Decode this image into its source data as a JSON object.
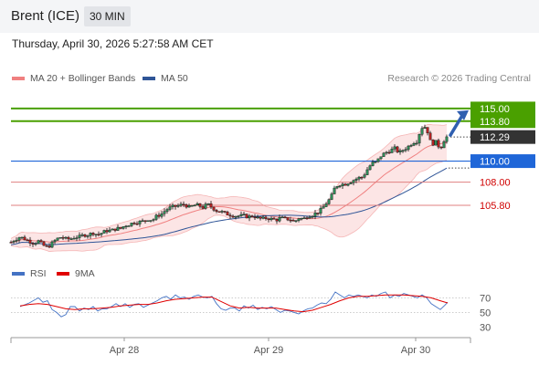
{
  "header": {
    "instrument": "Brent (ICE)",
    "interval": "30 MIN"
  },
  "datetime": "Thursday, April 30, 2026 5:27:58 AM CET",
  "credit": "Research © 2026 Trading Central",
  "colors": {
    "ma20": "#f08080",
    "ma50": "#2f5597",
    "rsi": "#4472c4",
    "rsi_ma": "#e00000",
    "resistance": "#4aa000",
    "support": "#1f66d8",
    "current": "#333333",
    "level": "#e08080"
  },
  "chart_data": [
    {
      "type": "candlestick",
      "legend": [
        {
          "name": "MA 20 + Bollinger Bands",
          "color": "#f08080"
        },
        {
          "name": "MA 50",
          "color": "#2f5597"
        }
      ],
      "ylim": [
        100.6,
        116.9
      ],
      "x_ticks": [
        "Apr 28",
        "Apr 29",
        "Apr 30"
      ],
      "levels": [
        {
          "value": 115.0,
          "label": "115.00",
          "kind": "resistance"
        },
        {
          "value": 113.8,
          "label": "113.80",
          "kind": "resistance"
        },
        {
          "value": 112.29,
          "label": "112.29",
          "kind": "current"
        },
        {
          "value": 110.0,
          "label": "110.00",
          "kind": "support"
        },
        {
          "value": 108.0,
          "label": "108.00",
          "kind": "level"
        },
        {
          "value": 105.8,
          "label": "105.80",
          "kind": "level"
        }
      ],
      "close_anchors": [
        [
          0,
          102.3
        ],
        [
          5,
          102.6
        ],
        [
          10,
          102.8
        ],
        [
          15,
          102.6
        ],
        [
          20,
          102.4
        ],
        [
          25,
          102.2
        ],
        [
          30,
          102.4
        ],
        [
          35,
          102.0
        ],
        [
          40,
          101.8
        ],
        [
          45,
          102.2
        ],
        [
          50,
          102.6
        ],
        [
          55,
          102.8
        ],
        [
          60,
          102.6
        ],
        [
          65,
          102.6
        ],
        [
          70,
          102.8
        ],
        [
          75,
          102.8
        ],
        [
          80,
          103.0
        ],
        [
          85,
          103.0
        ],
        [
          90,
          103.2
        ],
        [
          95,
          103.0
        ],
        [
          100,
          103.2
        ],
        [
          105,
          103.4
        ],
        [
          110,
          103.4
        ],
        [
          115,
          103.6
        ],
        [
          120,
          103.6
        ],
        [
          125,
          103.9
        ],
        [
          130,
          104.0
        ],
        [
          135,
          104.2
        ],
        [
          140,
          104.2
        ],
        [
          145,
          104.3
        ],
        [
          150,
          104.5
        ],
        [
          155,
          104.4
        ],
        [
          160,
          104.8
        ],
        [
          165,
          105.0
        ],
        [
          170,
          105.4
        ],
        [
          175,
          105.6
        ],
        [
          180,
          105.7
        ],
        [
          185,
          105.8
        ],
        [
          190,
          105.9
        ],
        [
          195,
          105.6
        ],
        [
          200,
          105.8
        ],
        [
          205,
          105.8
        ],
        [
          210,
          105.6
        ],
        [
          215,
          105.9
        ],
        [
          220,
          105.6
        ],
        [
          225,
          105.3
        ],
        [
          230,
          105.2
        ],
        [
          235,
          105.0
        ],
        [
          240,
          104.9
        ],
        [
          245,
          104.8
        ],
        [
          250,
          104.8
        ],
        [
          255,
          104.8
        ],
        [
          260,
          104.7
        ],
        [
          265,
          104.8
        ],
        [
          270,
          104.6
        ],
        [
          275,
          104.5
        ],
        [
          280,
          104.6
        ],
        [
          285,
          104.5
        ],
        [
          290,
          104.4
        ],
        [
          295,
          104.6
        ],
        [
          300,
          104.5
        ],
        [
          305,
          104.5
        ],
        [
          310,
          104.2
        ],
        [
          315,
          104.6
        ],
        [
          320,
          104.5
        ],
        [
          325,
          104.8
        ],
        [
          330,
          104.9
        ],
        [
          335,
          105.1
        ],
        [
          340,
          105.4
        ],
        [
          345,
          106.0
        ],
        [
          350,
          106.5
        ],
        [
          355,
          107.6
        ],
        [
          360,
          107.8
        ],
        [
          365,
          107.8
        ],
        [
          370,
          108.0
        ],
        [
          375,
          108.2
        ],
        [
          380,
          108.4
        ],
        [
          385,
          108.5
        ],
        [
          390,
          109.2
        ],
        [
          395,
          109.8
        ],
        [
          400,
          109.9
        ],
        [
          405,
          110.5
        ],
        [
          410,
          110.8
        ],
        [
          415,
          111.0
        ],
        [
          420,
          111.2
        ],
        [
          425,
          110.8
        ],
        [
          430,
          111.1
        ],
        [
          435,
          111.4
        ],
        [
          440,
          111.8
        ],
        [
          445,
          111.9
        ],
        [
          448,
          113.0
        ],
        [
          452,
          113.4
        ],
        [
          456,
          112.8
        ],
        [
          460,
          111.6
        ],
        [
          465,
          111.8
        ],
        [
          470,
          111.2
        ],
        [
          474,
          112.0
        ],
        [
          477,
          112.29
        ]
      ]
    },
    {
      "type": "line",
      "legend": [
        {
          "name": "RSI",
          "color": "#4472c4"
        },
        {
          "name": "9MA",
          "color": "#e00000"
        }
      ],
      "ylim": [
        18,
        88
      ],
      "y_ticks": [
        "70",
        "50",
        "30"
      ],
      "rsi": [
        [
          10,
          58
        ],
        [
          20,
          63
        ],
        [
          30,
          70
        ],
        [
          35,
          64
        ],
        [
          40,
          66
        ],
        [
          45,
          54
        ],
        [
          50,
          50
        ],
        [
          55,
          44
        ],
        [
          60,
          47
        ],
        [
          65,
          58
        ],
        [
          70,
          58
        ],
        [
          75,
          52
        ],
        [
          80,
          56
        ],
        [
          85,
          54
        ],
        [
          90,
          58
        ],
        [
          95,
          52
        ],
        [
          100,
          55
        ],
        [
          105,
          55
        ],
        [
          110,
          58
        ],
        [
          115,
          62
        ],
        [
          120,
          58
        ],
        [
          125,
          62
        ],
        [
          130,
          57
        ],
        [
          135,
          61
        ],
        [
          140,
          62
        ],
        [
          145,
          57
        ],
        [
          150,
          60
        ],
        [
          155,
          63
        ],
        [
          160,
          66
        ],
        [
          165,
          70
        ],
        [
          170,
          72
        ],
        [
          175,
          68
        ],
        [
          180,
          74
        ],
        [
          185,
          70
        ],
        [
          190,
          71
        ],
        [
          195,
          68
        ],
        [
          200,
          72
        ],
        [
          205,
          74
        ],
        [
          210,
          71
        ],
        [
          215,
          70
        ],
        [
          220,
          72
        ],
        [
          225,
          62
        ],
        [
          230,
          55
        ],
        [
          235,
          53
        ],
        [
          240,
          56
        ],
        [
          245,
          56
        ],
        [
          250,
          52
        ],
        [
          255,
          59
        ],
        [
          260,
          56
        ],
        [
          265,
          60
        ],
        [
          270,
          54
        ],
        [
          275,
          57
        ],
        [
          280,
          55
        ],
        [
          285,
          58
        ],
        [
          290,
          54
        ],
        [
          295,
          50
        ],
        [
          300,
          53
        ],
        [
          305,
          52
        ],
        [
          310,
          50
        ],
        [
          315,
          48
        ],
        [
          320,
          52
        ],
        [
          325,
          55
        ],
        [
          330,
          56
        ],
        [
          335,
          60
        ],
        [
          340,
          63
        ],
        [
          345,
          62
        ],
        [
          350,
          68
        ],
        [
          355,
          78
        ],
        [
          360,
          74
        ],
        [
          365,
          70
        ],
        [
          370,
          74
        ],
        [
          375,
          72
        ],
        [
          380,
          74
        ],
        [
          385,
          72
        ],
        [
          390,
          70
        ],
        [
          395,
          74
        ],
        [
          400,
          72
        ],
        [
          405,
          76
        ],
        [
          410,
          78
        ],
        [
          415,
          70
        ],
        [
          420,
          74
        ],
        [
          425,
          72
        ],
        [
          430,
          76
        ],
        [
          435,
          74
        ],
        [
          440,
          72
        ],
        [
          445,
          70
        ],
        [
          450,
          74
        ],
        [
          455,
          70
        ],
        [
          460,
          62
        ],
        [
          465,
          58
        ],
        [
          470,
          54
        ],
        [
          475,
          60
        ],
        [
          478,
          64
        ]
      ],
      "rsi_ma": [
        [
          10,
          59
        ],
        [
          20,
          61
        ],
        [
          30,
          62
        ],
        [
          40,
          61
        ],
        [
          50,
          58
        ],
        [
          60,
          55
        ],
        [
          70,
          54
        ],
        [
          80,
          55
        ],
        [
          90,
          55
        ],
        [
          100,
          56
        ],
        [
          110,
          57
        ],
        [
          120,
          59
        ],
        [
          130,
          60
        ],
        [
          140,
          61
        ],
        [
          150,
          61
        ],
        [
          160,
          63
        ],
        [
          170,
          66
        ],
        [
          180,
          68
        ],
        [
          190,
          69
        ],
        [
          200,
          70
        ],
        [
          210,
          71
        ],
        [
          220,
          71
        ],
        [
          230,
          65
        ],
        [
          240,
          59
        ],
        [
          250,
          56
        ],
        [
          260,
          57
        ],
        [
          270,
          56
        ],
        [
          280,
          56
        ],
        [
          290,
          56
        ],
        [
          300,
          54
        ],
        [
          310,
          52
        ],
        [
          320,
          51
        ],
        [
          330,
          53
        ],
        [
          340,
          57
        ],
        [
          350,
          61
        ],
        [
          360,
          66
        ],
        [
          370,
          70
        ],
        [
          380,
          72
        ],
        [
          390,
          72
        ],
        [
          400,
          73
        ],
        [
          410,
          74
        ],
        [
          420,
          74
        ],
        [
          430,
          74
        ],
        [
          440,
          73
        ],
        [
          450,
          72
        ],
        [
          460,
          70
        ],
        [
          470,
          66
        ],
        [
          478,
          63
        ]
      ]
    }
  ]
}
